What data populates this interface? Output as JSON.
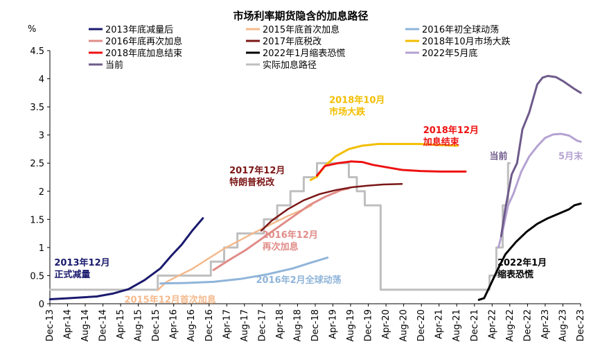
{
  "chart_data": {
    "type": "line",
    "title": "市场利率期货隐含的加息路径",
    "ylabel": "%",
    "ylim": [
      0,
      4.5
    ],
    "yticks": [
      "0",
      "0.5",
      "1",
      "1.5",
      "2",
      "2.5",
      "3",
      "3.5",
      "4",
      "4.5"
    ],
    "xlim": [
      2013.917,
      2023.917
    ],
    "xticks": [
      {
        "label": "Dec-13",
        "t": 2013.917
      },
      {
        "label": "Apr-14",
        "t": 2014.25
      },
      {
        "label": "Aug-14",
        "t": 2014.583
      },
      {
        "label": "Dec-14",
        "t": 2014.917
      },
      {
        "label": "Apr-15",
        "t": 2015.25
      },
      {
        "label": "Aug-15",
        "t": 2015.583
      },
      {
        "label": "Dec-15",
        "t": 2015.917
      },
      {
        "label": "Apr-16",
        "t": 2016.25
      },
      {
        "label": "Aug-16",
        "t": 2016.583
      },
      {
        "label": "Dec-16",
        "t": 2016.917
      },
      {
        "label": "Apr-17",
        "t": 2017.25
      },
      {
        "label": "Aug-17",
        "t": 2017.583
      },
      {
        "label": "Dec-17",
        "t": 2017.917
      },
      {
        "label": "Apr-18",
        "t": 2018.25
      },
      {
        "label": "Aug-18",
        "t": 2018.583
      },
      {
        "label": "Dec-18",
        "t": 2018.917
      },
      {
        "label": "Apr-19",
        "t": 2019.25
      },
      {
        "label": "Aug-19",
        "t": 2019.583
      },
      {
        "label": "Dec-19",
        "t": 2019.917
      },
      {
        "label": "Apr-20",
        "t": 2020.25
      },
      {
        "label": "Aug-20",
        "t": 2020.583
      },
      {
        "label": "Dec-20",
        "t": 2020.917
      },
      {
        "label": "Apr-21",
        "t": 2021.25
      },
      {
        "label": "Aug-21",
        "t": 2021.583
      },
      {
        "label": "Dec-21",
        "t": 2021.917
      },
      {
        "label": "Apr-22",
        "t": 2022.25
      },
      {
        "label": "Aug-22",
        "t": 2022.583
      },
      {
        "label": "Dec-22",
        "t": 2022.917
      },
      {
        "label": "Apr-23",
        "t": 2023.25
      },
      {
        "label": "Aug-23",
        "t": 2023.583
      },
      {
        "label": "Dec-23",
        "t": 2023.917
      }
    ],
    "series": [
      {
        "name": "2013年底减量后",
        "color": "#1a1a6e",
        "width": 3,
        "step": false,
        "points": [
          [
            2013.92,
            0.08
          ],
          [
            2014.3,
            0.1
          ],
          [
            2014.8,
            0.13
          ],
          [
            2015.1,
            0.18
          ],
          [
            2015.4,
            0.26
          ],
          [
            2015.7,
            0.42
          ],
          [
            2016.0,
            0.63
          ],
          [
            2016.2,
            0.85
          ],
          [
            2016.4,
            1.05
          ],
          [
            2016.6,
            1.3
          ],
          [
            2016.8,
            1.52
          ]
        ]
      },
      {
        "name": "2015年底首次加息",
        "color": "#f4b98c",
        "width": 2.5,
        "step": false,
        "points": [
          [
            2015.95,
            0.24
          ],
          [
            2016.1,
            0.38
          ],
          [
            2016.3,
            0.48
          ],
          [
            2016.6,
            0.62
          ],
          [
            2016.9,
            0.8
          ],
          [
            2017.2,
            0.98
          ],
          [
            2017.5,
            1.13
          ],
          [
            2017.8,
            1.28
          ],
          [
            2018.1,
            1.42
          ],
          [
            2018.4,
            1.56
          ],
          [
            2018.7,
            1.68
          ],
          [
            2018.85,
            1.75
          ]
        ]
      },
      {
        "name": "2016年初全球动荡",
        "color": "#8fb4d9",
        "width": 3,
        "step": false,
        "points": [
          [
            2016.0,
            0.36
          ],
          [
            2016.5,
            0.37
          ],
          [
            2017.0,
            0.39
          ],
          [
            2017.5,
            0.44
          ],
          [
            2018.0,
            0.52
          ],
          [
            2018.5,
            0.63
          ],
          [
            2018.8,
            0.72
          ],
          [
            2019.15,
            0.82
          ]
        ]
      },
      {
        "name": "2016年底再次加息",
        "color": "#e08c88",
        "width": 3,
        "step": false,
        "points": [
          [
            2017.0,
            0.6
          ],
          [
            2017.3,
            0.78
          ],
          [
            2017.6,
            0.95
          ],
          [
            2017.9,
            1.15
          ],
          [
            2018.2,
            1.35
          ],
          [
            2018.5,
            1.55
          ],
          [
            2018.8,
            1.75
          ],
          [
            2019.1,
            1.9
          ],
          [
            2019.4,
            2.02
          ],
          [
            2019.55,
            2.05
          ]
        ]
      },
      {
        "name": "2017年底税改",
        "color": "#7b1616",
        "width": 2.5,
        "step": false,
        "points": [
          [
            2017.9,
            1.3
          ],
          [
            2018.1,
            1.48
          ],
          [
            2018.4,
            1.68
          ],
          [
            2018.7,
            1.84
          ],
          [
            2019.0,
            1.95
          ],
          [
            2019.3,
            2.02
          ],
          [
            2019.6,
            2.07
          ],
          [
            2019.9,
            2.1
          ],
          [
            2020.2,
            2.12
          ],
          [
            2020.55,
            2.13
          ]
        ]
      },
      {
        "name": "2018年10月市场大跌",
        "color": "#f2be00",
        "width": 3,
        "step": false,
        "points": [
          [
            2018.83,
            2.2
          ],
          [
            2018.95,
            2.26
          ],
          [
            2019.1,
            2.45
          ],
          [
            2019.3,
            2.62
          ],
          [
            2019.55,
            2.75
          ],
          [
            2019.8,
            2.81
          ],
          [
            2020.1,
            2.84
          ],
          [
            2020.5,
            2.84
          ],
          [
            2020.9,
            2.84
          ],
          [
            2021.3,
            2.82
          ],
          [
            2021.6,
            2.81
          ]
        ]
      },
      {
        "name": "2018年底加息结束",
        "color": "#ee1111",
        "width": 3,
        "step": false,
        "points": [
          [
            2018.95,
            2.28
          ],
          [
            2019.1,
            2.45
          ],
          [
            2019.35,
            2.5
          ],
          [
            2019.6,
            2.53
          ],
          [
            2019.8,
            2.52
          ],
          [
            2020.0,
            2.47
          ],
          [
            2020.3,
            2.42
          ],
          [
            2020.55,
            2.38
          ],
          [
            2020.9,
            2.36
          ],
          [
            2021.3,
            2.35
          ],
          [
            2021.75,
            2.35
          ]
        ]
      },
      {
        "name": "2022年1月缩表恐慌",
        "color": "#000000",
        "width": 3,
        "step": false,
        "points": [
          [
            2022.0,
            0.07
          ],
          [
            2022.1,
            0.1
          ],
          [
            2022.2,
            0.3
          ],
          [
            2022.35,
            0.6
          ],
          [
            2022.5,
            0.88
          ],
          [
            2022.7,
            1.1
          ],
          [
            2022.9,
            1.28
          ],
          [
            2023.1,
            1.42
          ],
          [
            2023.3,
            1.52
          ],
          [
            2023.5,
            1.6
          ],
          [
            2023.7,
            1.68
          ],
          [
            2023.8,
            1.75
          ],
          [
            2023.92,
            1.78
          ]
        ]
      },
      {
        "name": "2022年5月底",
        "color": "#b4a2d2",
        "width": 3,
        "step": false,
        "points": [
          [
            2022.37,
            1.0
          ],
          [
            2022.45,
            1.3
          ],
          [
            2022.55,
            1.75
          ],
          [
            2022.65,
            1.95
          ],
          [
            2022.8,
            2.35
          ],
          [
            2022.95,
            2.62
          ],
          [
            2023.1,
            2.8
          ],
          [
            2023.25,
            2.95
          ],
          [
            2023.4,
            3.01
          ],
          [
            2023.55,
            3.02
          ],
          [
            2023.7,
            2.99
          ],
          [
            2023.85,
            2.9
          ],
          [
            2023.92,
            2.88
          ]
        ]
      },
      {
        "name": "当前",
        "color": "#6e5a8a",
        "width": 3,
        "step": false,
        "points": [
          [
            2022.42,
            1.2
          ],
          [
            2022.5,
            1.7
          ],
          [
            2022.62,
            2.3
          ],
          [
            2022.72,
            2.5
          ],
          [
            2022.82,
            3.1
          ],
          [
            2022.95,
            3.4
          ],
          [
            2023.1,
            3.9
          ],
          [
            2023.2,
            4.02
          ],
          [
            2023.3,
            4.05
          ],
          [
            2023.45,
            4.03
          ],
          [
            2023.6,
            3.95
          ],
          [
            2023.8,
            3.82
          ],
          [
            2023.92,
            3.75
          ]
        ]
      },
      {
        "name": "实际加息路径",
        "color": "#bfbfbf",
        "width": 3,
        "step": true,
        "points": [
          [
            2013.92,
            0.25
          ],
          [
            2015.95,
            0.5
          ],
          [
            2016.95,
            0.75
          ],
          [
            2017.2,
            1.0
          ],
          [
            2017.45,
            1.25
          ],
          [
            2017.95,
            1.5
          ],
          [
            2018.2,
            1.75
          ],
          [
            2018.45,
            2.0
          ],
          [
            2018.7,
            2.25
          ],
          [
            2018.95,
            2.5
          ],
          [
            2019.55,
            2.25
          ],
          [
            2019.7,
            2.0
          ],
          [
            2019.85,
            1.75
          ],
          [
            2020.15,
            0.25
          ],
          [
            2022.2,
            0.5
          ],
          [
            2022.33,
            1.0
          ],
          [
            2022.45,
            1.75
          ],
          [
            2022.55,
            2.5
          ]
        ]
      }
    ],
    "legend": [
      [
        "2013年底减量后",
        "2015年底首次加息",
        "2016年初全球动荡"
      ],
      [
        "2016年底再次加息",
        "2017年底税改",
        "2018年10月市场大跌"
      ],
      [
        "2018年底加息结束",
        "2022年1月缩表恐慌",
        "2022年5月底"
      ],
      [
        "当前",
        "实际加息路径"
      ]
    ],
    "annotations": [
      {
        "lines": [
          "2013年12月",
          "正式减量"
        ],
        "t": 2014.0,
        "y": 0.68,
        "color": "#1a1a6e"
      },
      {
        "lines": [
          "2015年12月首次加息"
        ],
        "t": 2015.32,
        "y": 0.02,
        "color": "#f4b98c"
      },
      {
        "lines": [
          "2016年2月全球动荡"
        ],
        "t": 2017.8,
        "y": 0.37,
        "color": "#8fb4d9"
      },
      {
        "lines": [
          "2016年12月",
          "再次加息"
        ],
        "t": 2017.92,
        "y": 1.17,
        "color": "#e08c88"
      },
      {
        "lines": [
          "2017年12月",
          "特朗普税改"
        ],
        "t": 2017.3,
        "y": 2.32,
        "color": "#7b1616"
      },
      {
        "lines": [
          "2018年10月",
          "市场大跌"
        ],
        "t": 2019.18,
        "y": 3.57,
        "color": "#f2be00"
      },
      {
        "lines": [
          "2018年12月",
          "加息结束"
        ],
        "t": 2020.95,
        "y": 3.03,
        "color": "#ee1111"
      },
      {
        "lines": [
          "当前"
        ],
        "t": 2022.2,
        "y": 2.57,
        "color": "#6e5a8a"
      },
      {
        "lines": [
          "5月末"
        ],
        "t": 2023.5,
        "y": 2.57,
        "color": "#b4a2d2"
      },
      {
        "lines": [
          "2022年1月",
          "缩表恐慌"
        ],
        "t": 2022.35,
        "y": 0.68,
        "color": "#000000"
      }
    ]
  }
}
